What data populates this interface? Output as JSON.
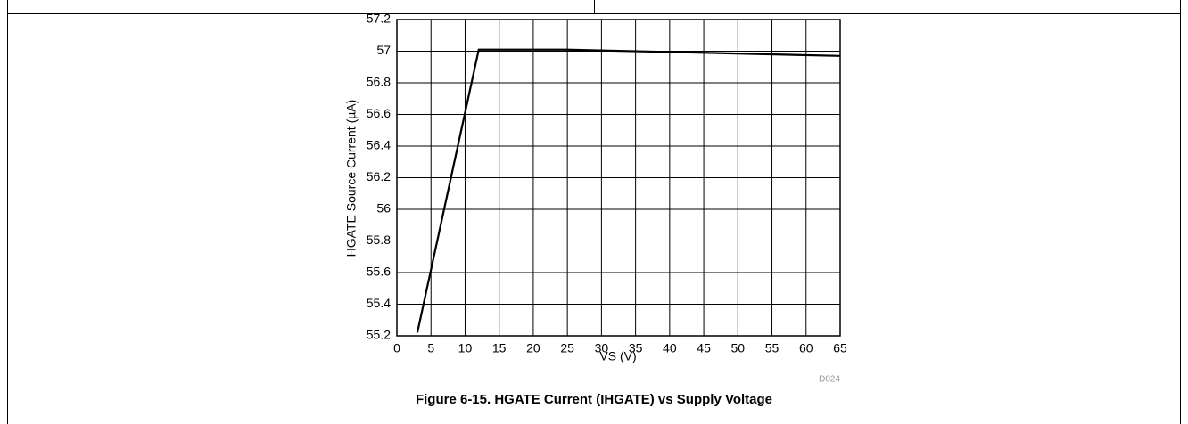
{
  "chart_data": {
    "type": "line",
    "title": "Figure 6-15. HGATE Current (IHGATE) vs Supply Voltage",
    "xlabel": "VS (V)",
    "ylabel": "HGATE Source Current (µA)",
    "code": "D024",
    "x": [
      3,
      12,
      25,
      65
    ],
    "series": [
      {
        "color": "#000000",
        "values": [
          55.22,
          57.01,
          57.01,
          56.97
        ]
      }
    ],
    "xlim": [
      0,
      65
    ],
    "xticks": [
      0,
      5,
      10,
      15,
      20,
      25,
      30,
      35,
      40,
      45,
      50,
      55,
      60,
      65
    ],
    "ylim": [
      55.2,
      57.2
    ],
    "yticks": [
      55.2,
      55.4,
      55.6,
      55.8,
      56,
      56.2,
      56.4,
      56.6,
      56.8,
      57,
      57.2
    ],
    "grid": true
  }
}
